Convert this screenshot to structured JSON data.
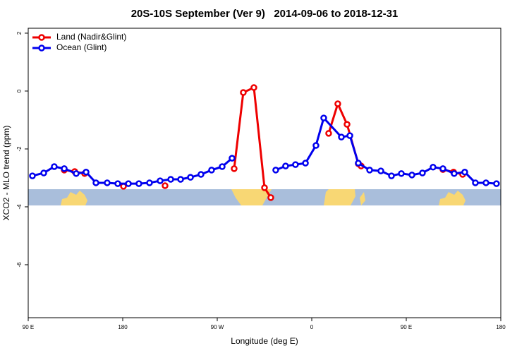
{
  "chart_data": {
    "type": "line",
    "title": "20S-10S September (Ver 9)   2014-09-06 to 2018-12-31",
    "x_label": "Longitude (deg E)",
    "y_label": "XCO2 - MLO trend (ppm)",
    "xlim": [
      90,
      540
    ],
    "ylim": [
      -7.83,
      2.17
    ],
    "xticks": [
      {
        "value": 90,
        "label": "90 E"
      },
      180,
      {
        "value": 270,
        "label": "90 W"
      },
      {
        "value": 360,
        "label": "0"
      },
      {
        "value": 450,
        "label": "90 E"
      },
      {
        "value": 540,
        "label": "180"
      }
    ],
    "yticks": [
      2,
      0,
      -2,
      -4,
      -6
    ],
    "legend": "top-left",
    "series": [
      {
        "name": "Land (Nadir&Glint)",
        "color": "#ee0000",
        "x": [
          124.3,
          134.3,
          143.7,
          160,
          180.7,
          200,
          220.3,
          270,
          286.1,
          294.8,
          304.9,
          315.0,
          321.0,
          340,
          376.1,
          384.8,
          393.6,
          404.3,
          407.0,
          450,
          484.9,
          495.0,
          503.7
        ],
        "values": [
          -2.73,
          -2.78,
          -2.85,
          null,
          -3.29,
          null,
          -3.27,
          null,
          -2.68,
          -0.05,
          0.12,
          -3.34,
          -3.68,
          null,
          -1.46,
          -0.44,
          -1.15,
          -2.51,
          -2.59,
          null,
          -2.71,
          -2.8,
          -2.88
        ]
      },
      {
        "name": "Ocean (Glint)",
        "color": "#0000ee",
        "x": [
          94.0,
          104.8,
          114.8,
          124.3,
          135.7,
          145.1,
          154.5,
          165.2,
          175.3,
          185.4,
          195.4,
          205.5,
          215.6,
          225.7,
          235.1,
          244.5,
          254.5,
          264.6,
          274.7,
          284.1,
          305,
          325.7,
          335.1,
          344.5,
          354.0,
          364.0,
          371.4,
          388.2,
          396.3,
          404.3,
          415.1,
          425.8,
          435.9,
          445.3,
          455.4,
          465.4,
          475.5,
          484.9,
          495.6,
          505.7,
          515.8,
          525.9,
          535.9
        ],
        "values": [
          -2.93,
          -2.83,
          -2.61,
          -2.68,
          -2.85,
          -2.8,
          -3.17,
          -3.17,
          -3.2,
          -3.2,
          -3.2,
          -3.17,
          -3.1,
          -3.05,
          -3.05,
          -2.98,
          -2.88,
          -2.73,
          -2.61,
          -2.32,
          null,
          -2.73,
          -2.59,
          -2.54,
          -2.49,
          -1.88,
          -0.93,
          -1.59,
          -1.54,
          -2.49,
          -2.73,
          -2.76,
          -2.93,
          -2.85,
          -2.9,
          -2.83,
          -2.63,
          -2.68,
          -2.85,
          -2.8,
          -3.17,
          -3.17,
          -3.2
        ]
      }
    ]
  }
}
